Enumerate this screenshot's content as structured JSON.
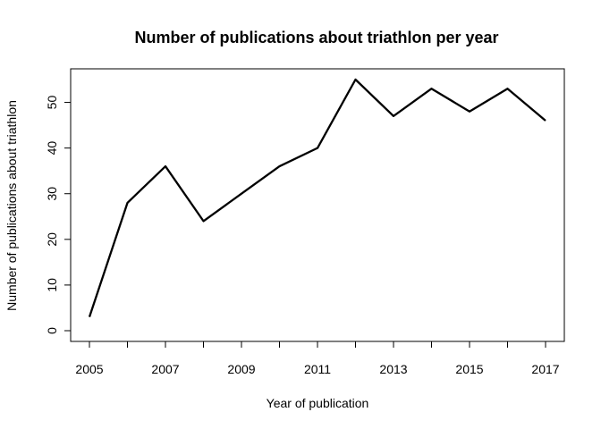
{
  "chart_data": {
    "type": "line",
    "title": "Number of publications about triathlon per year",
    "xlabel": "Year of publication",
    "ylabel": "Number of publications about triathlon",
    "x": [
      2005,
      2006,
      2007,
      2008,
      2009,
      2010,
      2011,
      2012,
      2013,
      2014,
      2015,
      2016,
      2017
    ],
    "series": [
      {
        "values": [
          3,
          28,
          36,
          24,
          30,
          36,
          40,
          55,
          47,
          53,
          48,
          53,
          46
        ]
      }
    ],
    "xlim": [
      2005,
      2017
    ],
    "ylim": [
      0,
      55
    ],
    "xticks": [
      2005,
      2007,
      2009,
      2011,
      2013,
      2015,
      2017
    ],
    "yticks": [
      0,
      10,
      20,
      30,
      40,
      50
    ],
    "grid": false,
    "line_color": "#000000"
  }
}
